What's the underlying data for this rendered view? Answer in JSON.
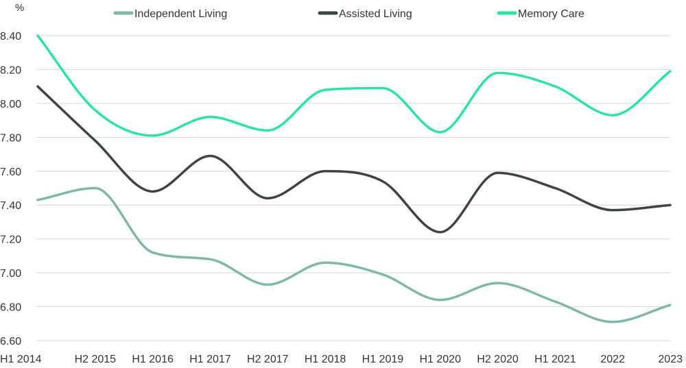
{
  "chart_data": {
    "type": "line",
    "ylabel": "%",
    "ylim": [
      6.6,
      8.4
    ],
    "yticks": [
      "6.60",
      "6.80",
      "7.00",
      "7.20",
      "7.40",
      "7.60",
      "7.80",
      "8.00",
      "8.20",
      "8.40"
    ],
    "categories": [
      "H1 2014",
      "H2 2015",
      "H1 2016",
      "H1 2017",
      "H2 2017",
      "H1 2018",
      "H1 2019",
      "H1 2020",
      "H2 2020",
      "H1 2021",
      "2022",
      "2023"
    ],
    "grid": true,
    "legend_position": "top",
    "series": [
      {
        "name": "Independent Living",
        "color": "#7fb7a8",
        "values": [
          7.43,
          7.5,
          7.12,
          7.08,
          6.93,
          7.06,
          6.99,
          6.84,
          6.94,
          6.83,
          6.71,
          6.81
        ]
      },
      {
        "name": "Assisted Living",
        "color": "#3c4444",
        "values": [
          8.1,
          7.78,
          7.48,
          7.69,
          7.44,
          7.6,
          7.54,
          7.24,
          7.59,
          7.5,
          7.37,
          7.4
        ]
      },
      {
        "name": "Memory Care",
        "color": "#2ee3a0",
        "values": [
          8.4,
          7.96,
          7.81,
          7.92,
          7.84,
          8.08,
          8.09,
          7.83,
          8.18,
          8.1,
          7.93,
          8.19
        ]
      }
    ]
  }
}
